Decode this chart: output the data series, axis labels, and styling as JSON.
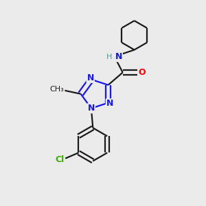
{
  "background_color": "#ebebeb",
  "bond_color": "#1a1a1a",
  "nitrogen_color": "#1414ff",
  "oxygen_color": "#ff0000",
  "chlorine_color": "#3cb000",
  "hydrogen_color": "#4a9999",
  "line_width": 1.6,
  "figsize": [
    3.0,
    3.0
  ],
  "dpi": 100,
  "xlim": [
    0,
    10
  ],
  "ylim": [
    0,
    10
  ]
}
